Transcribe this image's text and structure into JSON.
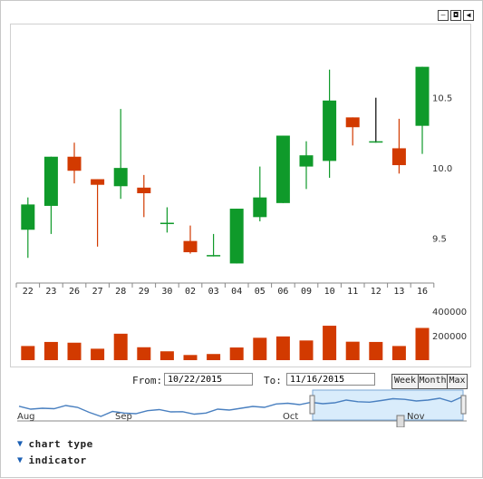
{
  "window_controls": [
    {
      "name": "minimize-icon",
      "glyph": "–"
    },
    {
      "name": "restore-icon",
      "glyph": "◘"
    },
    {
      "name": "collapse-icon",
      "glyph": "◀"
    }
  ],
  "chart_data": {
    "type": "candlestick",
    "categories": [
      "22",
      "23",
      "26",
      "27",
      "28",
      "29",
      "30",
      "02",
      "03",
      "04",
      "05",
      "06",
      "09",
      "10",
      "11",
      "12",
      "13",
      "16"
    ],
    "ohlc": [
      {
        "open": 9.56,
        "high": 9.79,
        "low": 9.36,
        "close": 9.74
      },
      {
        "open": 9.73,
        "high": 10.08,
        "low": 9.53,
        "close": 10.08
      },
      {
        "open": 10.08,
        "high": 10.18,
        "low": 9.89,
        "close": 9.98
      },
      {
        "open": 9.92,
        "high": 9.92,
        "low": 9.44,
        "close": 9.88
      },
      {
        "open": 9.87,
        "high": 10.42,
        "low": 9.78,
        "close": 10.0
      },
      {
        "open": 9.86,
        "high": 9.95,
        "low": 9.65,
        "close": 9.82
      },
      {
        "open": 9.61,
        "high": 9.72,
        "low": 9.54,
        "close": 9.61
      },
      {
        "open": 9.48,
        "high": 9.59,
        "low": 9.39,
        "close": 9.4
      },
      {
        "open": 9.38,
        "high": 9.53,
        "low": 9.37,
        "close": 9.38
      },
      {
        "open": 9.32,
        "high": 9.71,
        "low": 9.32,
        "close": 9.71
      },
      {
        "open": 9.65,
        "high": 10.01,
        "low": 9.62,
        "close": 9.79
      },
      {
        "open": 9.75,
        "high": 10.23,
        "low": 9.75,
        "close": 10.23
      },
      {
        "open": 10.01,
        "high": 10.19,
        "low": 9.85,
        "close": 10.09
      },
      {
        "open": 10.05,
        "high": 10.7,
        "low": 9.93,
        "close": 10.48
      },
      {
        "open": 10.36,
        "high": 10.36,
        "low": 10.16,
        "close": 10.29
      },
      {
        "open": 10.19,
        "high": 10.5,
        "low": 10.18,
        "close": 10.19
      },
      {
        "open": 10.14,
        "high": 10.35,
        "low": 9.96,
        "close": 10.02
      },
      {
        "open": 10.3,
        "high": 10.72,
        "low": 10.1,
        "close": 10.72
      }
    ],
    "volume": [
      115000,
      148000,
      142000,
      93000,
      215000,
      105000,
      72000,
      42000,
      50000,
      103000,
      182000,
      193000,
      160000,
      280000,
      150000,
      148000,
      115000,
      262000
    ],
    "y_ticks": [
      "10.5",
      "10.0",
      "9.5"
    ],
    "y_tick_values": [
      10.5,
      10.0,
      9.5
    ],
    "ylim": [
      9.2,
      10.75
    ],
    "volume_ticks": [
      "400000",
      "200000"
    ],
    "volume_tick_values": [
      400000,
      200000
    ],
    "volume_max": 450000,
    "up_color": "#0f9a2a",
    "down_color": "#d23a00",
    "navigator": {
      "labels": [
        "Aug",
        "Sep",
        "Oct",
        "Nov"
      ],
      "values": [
        9.75,
        9.62,
        9.66,
        9.64,
        9.78,
        9.7,
        9.48,
        9.3,
        9.52,
        9.45,
        9.42,
        9.55,
        9.6,
        9.5,
        9.51,
        9.4,
        9.45,
        9.62,
        9.58,
        9.66,
        9.74,
        9.7,
        9.85,
        9.88,
        9.82,
        9.92,
        9.86,
        9.9,
        10.02,
        9.95,
        9.93,
        10.0,
        10.08,
        10.05,
        9.98,
        10.02,
        10.1,
        9.95,
        10.18
      ],
      "selection_color": "#d9ecfb",
      "line_color": "#4a80c0"
    }
  },
  "range_selector": {
    "from_label": "From:",
    "from_value": "10/22/2015",
    "to_label": "To:",
    "to_value": "11/16/2015",
    "buttons": [
      "Week",
      "Month",
      "Max"
    ]
  },
  "menu": {
    "chart_type": "chart type",
    "indicator": "indicator"
  }
}
